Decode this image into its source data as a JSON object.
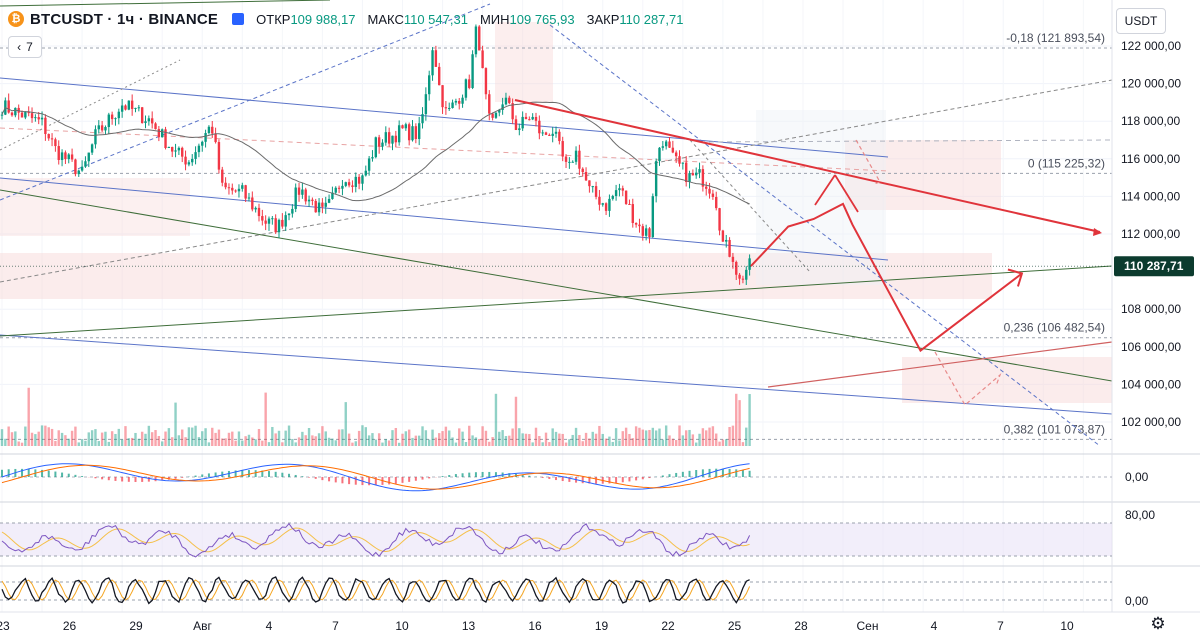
{
  "header": {
    "symbol": "BTCUSDT",
    "interval": "1ч",
    "exchange": "BINANCE",
    "open_label": "ОТКР",
    "open": "109 988,17",
    "high_label": "МАКС",
    "high": "110 547,31",
    "low_label": "МИН",
    "low": "109 765,93",
    "close_label": "ЗАКР",
    "close": "110 287,71",
    "indicators_count": "7"
  },
  "currency": "USDT",
  "colors": {
    "up": "#089981",
    "down": "#f23645",
    "projection": "#e0343b",
    "channel": "#5b74c8",
    "trend": "#3f6e3a",
    "price_tag": "#0c3b2e",
    "fib_band": "#f7d5d5"
  },
  "chart_data": {
    "type": "candlestick",
    "title": "BTCUSDT · 1ч · BINANCE",
    "price_axis": {
      "ticks": [
        122000,
        120000,
        118000,
        116000,
        114000,
        112000,
        108000,
        106000,
        104000,
        102000
      ],
      "tick_labels": [
        "122 000,00",
        "120 000,00",
        "118 000,00",
        "116 000,00",
        "114 000,00",
        "112 000,00",
        "108 000,00",
        "106 000,00",
        "104 000,00",
        "102 000,00"
      ],
      "current_price": 110287.71,
      "current_price_label": "110 287,71"
    },
    "time_axis": {
      "labels": [
        "23",
        "26",
        "29",
        "Авг",
        "4",
        "7",
        "10",
        "13",
        "16",
        "19",
        "22",
        "25",
        "28",
        "Сен",
        "4",
        "7",
        "10"
      ]
    },
    "path": [
      [
        0,
        118800
      ],
      [
        3,
        117900
      ],
      [
        4,
        116500
      ],
      [
        6,
        115200
      ],
      [
        7,
        117200
      ],
      [
        9,
        118900
      ],
      [
        11,
        118100
      ],
      [
        13,
        116300
      ],
      [
        14,
        115900
      ],
      [
        15.3,
        117400
      ],
      [
        15.7,
        117800
      ],
      [
        16.5,
        114400
      ],
      [
        18,
        114200
      ],
      [
        19.8,
        112600
      ],
      [
        20.7,
        112400
      ],
      [
        22.3,
        114400
      ],
      [
        24,
        113100
      ],
      [
        24.6,
        113600
      ],
      [
        25.5,
        115000
      ],
      [
        27,
        114900
      ],
      [
        28,
        116800
      ],
      [
        30,
        117500
      ],
      [
        31.2,
        117300
      ],
      [
        31.7,
        119000
      ],
      [
        32.3,
        122300
      ],
      [
        32.7,
        120000
      ],
      [
        33.3,
        118300
      ],
      [
        34.2,
        119300
      ],
      [
        35,
        120100
      ],
      [
        35.6,
        123200
      ],
      [
        36.1,
        119800
      ],
      [
        36.6,
        117500
      ],
      [
        37.6,
        119300
      ],
      [
        38.6,
        117600
      ],
      [
        39.6,
        118300
      ],
      [
        40.5,
        117200
      ],
      [
        41.2,
        117600
      ],
      [
        42.4,
        115200
      ],
      [
        42.9,
        116500
      ],
      [
        44,
        114300
      ],
      [
        45.3,
        113500
      ],
      [
        46.2,
        114500
      ],
      [
        47.4,
        112800
      ],
      [
        47.9,
        112200
      ],
      [
        48.6,
        112000
      ],
      [
        48.8,
        115000
      ],
      [
        49.4,
        117200
      ],
      [
        50.2,
        116000
      ],
      [
        51.5,
        115000
      ],
      [
        52.3,
        115100
      ],
      [
        53.4,
        114200
      ],
      [
        54,
        111500
      ],
      [
        54.8,
        110800
      ],
      [
        55.2,
        109400
      ],
      [
        55.8,
        110200
      ],
      [
        56.1,
        110290
      ]
    ],
    "volume_scale": 0.4,
    "fib_levels": [
      {
        "label": "-0,18 (121 893,54)",
        "price": 121893.54
      },
      {
        "label": "0 (115 225,32)",
        "price": 115225.32
      },
      {
        "label": "0,236 (106 482,54)",
        "price": 106482.54
      },
      {
        "label": "0,382 (101 073,87)",
        "price": 101073.87
      }
    ],
    "projection_path": [
      [
        56.1,
        110290
      ],
      [
        58.9,
        112400
      ],
      [
        60.8,
        112800
      ],
      [
        63,
        113600
      ],
      [
        63.7,
        112500
      ],
      [
        68.8,
        105800
      ],
      [
        76.4,
        109900
      ]
    ],
    "indicator_labels": {
      "macd_zero": "0,00",
      "rsi_upper": "80,00",
      "stoch_zero": "0,00"
    },
    "grid": true,
    "legend": "none"
  }
}
